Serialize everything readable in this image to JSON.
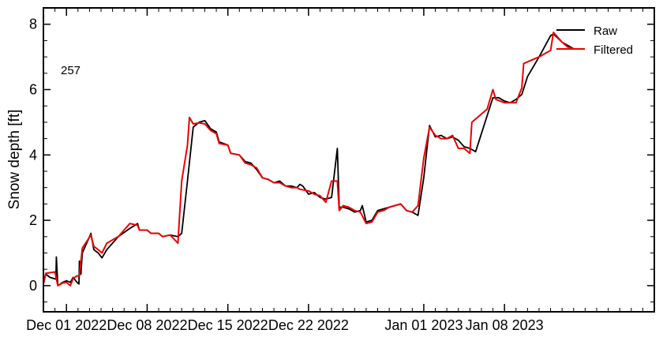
{
  "chart_data": {
    "type": "line",
    "ylabel": "Snow depth [ft]",
    "xlabel": "",
    "annotation": "257",
    "xlim": [
      "2022-11-29",
      "2023-01-21"
    ],
    "ylim": [
      -0.8,
      8.5
    ],
    "grid": false,
    "legend_position": "top-right",
    "x_ticks": [
      {
        "date": "2022-12-01",
        "label": "Dec 01 2022"
      },
      {
        "date": "2022-12-08",
        "label": "Dec 08 2022"
      },
      {
        "date": "2022-12-15",
        "label": "Dec 15 2022"
      },
      {
        "date": "2022-12-22",
        "label": "Dec 22 2022"
      },
      {
        "date": "2023-01-01",
        "label": "Jan 01 2023"
      },
      {
        "date": "2023-01-08",
        "label": "Jan 08 2023"
      }
    ],
    "y_ticks": [
      0,
      2,
      4,
      6,
      8
    ],
    "series": [
      {
        "name": "Raw",
        "color": "#000000",
        "points": [
          [
            "2022-11-29T00:00",
            0.05
          ],
          [
            "2022-11-29T05:00",
            0.35
          ],
          [
            "2022-11-29T14:00",
            0.25
          ],
          [
            "2022-11-30T02:00",
            0.2
          ],
          [
            "2022-11-30T03:00",
            0.88
          ],
          [
            "2022-11-30T06:00",
            0.0
          ],
          [
            "2022-11-30T16:00",
            0.1
          ],
          [
            "2022-12-01T00:00",
            0.15
          ],
          [
            "2022-12-01T08:00",
            0.1
          ],
          [
            "2022-12-01T14:00",
            0.25
          ],
          [
            "2022-12-01T22:00",
            0.1
          ],
          [
            "2022-12-02T02:00",
            0.05
          ],
          [
            "2022-12-02T03:00",
            0.75
          ],
          [
            "2022-12-02T06:00",
            0.35
          ],
          [
            "2022-12-02T09:00",
            1.0
          ],
          [
            "2022-12-02T18:00",
            1.3
          ],
          [
            "2022-12-03T03:00",
            1.6
          ],
          [
            "2022-12-03T09:00",
            1.1
          ],
          [
            "2022-12-03T18:00",
            1.0
          ],
          [
            "2022-12-04T02:00",
            0.85
          ],
          [
            "2022-12-04T12:00",
            1.1
          ],
          [
            "2022-12-05T12:00",
            1.5
          ],
          [
            "2022-12-06T12:00",
            1.75
          ],
          [
            "2022-12-07T04:00",
            1.9
          ],
          [
            "2022-12-07T08:00",
            1.7
          ],
          [
            "2022-12-08T00:00",
            1.7
          ],
          [
            "2022-12-08T08:00",
            1.6
          ],
          [
            "2022-12-09T00:00",
            1.6
          ],
          [
            "2022-12-09T08:00",
            1.5
          ],
          [
            "2022-12-10T00:00",
            1.55
          ],
          [
            "2022-12-10T16:00",
            1.5
          ],
          [
            "2022-12-11T00:00",
            1.6
          ],
          [
            "2022-12-11T12:00",
            3.2
          ],
          [
            "2022-12-12T00:00",
            4.85
          ],
          [
            "2022-12-12T12:00",
            5.0
          ],
          [
            "2022-12-13T00:00",
            5.05
          ],
          [
            "2022-12-13T12:00",
            4.8
          ],
          [
            "2022-12-14T00:00",
            4.7
          ],
          [
            "2022-12-14T06:00",
            4.4
          ],
          [
            "2022-12-15T00:00",
            4.3
          ],
          [
            "2022-12-15T06:00",
            4.05
          ],
          [
            "2022-12-16T00:00",
            4.0
          ],
          [
            "2022-12-16T12:00",
            3.8
          ],
          [
            "2022-12-17T00:00",
            3.75
          ],
          [
            "2022-12-17T12:00",
            3.55
          ],
          [
            "2022-12-18T00:00",
            3.3
          ],
          [
            "2022-12-18T12:00",
            3.25
          ],
          [
            "2022-12-19T00:00",
            3.15
          ],
          [
            "2022-12-19T12:00",
            3.2
          ],
          [
            "2022-12-20T00:00",
            3.05
          ],
          [
            "2022-12-20T12:00",
            3.05
          ],
          [
            "2022-12-21T00:00",
            3.0
          ],
          [
            "2022-12-21T06:00",
            3.1
          ],
          [
            "2022-12-21T12:00",
            3.05
          ],
          [
            "2022-12-22T00:00",
            2.8
          ],
          [
            "2022-12-22T12:00",
            2.85
          ],
          [
            "2022-12-23T00:00",
            2.7
          ],
          [
            "2022-12-23T12:00",
            2.65
          ],
          [
            "2022-12-24T00:00",
            2.7
          ],
          [
            "2022-12-24T12:00",
            4.2
          ],
          [
            "2022-12-24T16:00",
            2.4
          ],
          [
            "2022-12-25T00:00",
            2.4
          ],
          [
            "2022-12-25T12:00",
            2.35
          ],
          [
            "2022-12-26T00:00",
            2.25
          ],
          [
            "2022-12-26T12:00",
            2.3
          ],
          [
            "2022-12-26T16:00",
            2.45
          ],
          [
            "2022-12-27T00:00",
            1.95
          ],
          [
            "2022-12-27T12:00",
            2.0
          ],
          [
            "2022-12-28T00:00",
            2.3
          ],
          [
            "2022-12-28T12:00",
            2.35
          ],
          [
            "2022-12-29T00:00",
            2.4
          ],
          [
            "2022-12-30T00:00",
            2.5
          ],
          [
            "2022-12-30T12:00",
            2.3
          ],
          [
            "2022-12-31T00:00",
            2.25
          ],
          [
            "2022-12-31T12:00",
            2.15
          ],
          [
            "2023-01-01T00:00",
            3.3
          ],
          [
            "2023-01-01T12:00",
            4.9
          ],
          [
            "2023-01-02T00:00",
            4.55
          ],
          [
            "2023-01-02T12:00",
            4.6
          ],
          [
            "2023-01-03T00:00",
            4.5
          ],
          [
            "2023-01-03T12:00",
            4.55
          ],
          [
            "2023-01-04T00:00",
            4.45
          ],
          [
            "2023-01-04T12:00",
            4.25
          ],
          [
            "2023-01-05T00:00",
            4.2
          ],
          [
            "2023-01-05T12:00",
            4.1
          ],
          [
            "2023-01-07T00:00",
            5.75
          ],
          [
            "2023-01-07T12:00",
            5.75
          ],
          [
            "2023-01-08T00:00",
            5.65
          ],
          [
            "2023-01-08T12:00",
            5.6
          ],
          [
            "2023-01-09T00:00",
            5.7
          ],
          [
            "2023-01-09T12:00",
            5.85
          ],
          [
            "2023-01-10T00:00",
            6.4
          ],
          [
            "2023-01-11T00:00",
            7.0
          ],
          [
            "2023-01-12T00:00",
            7.65
          ],
          [
            "2023-01-12T06:00",
            7.7
          ],
          [
            "2023-01-13T00:00",
            7.45
          ],
          [
            "2023-01-13T12:00",
            7.35
          ],
          [
            "2023-01-14T00:00",
            7.25
          ]
        ]
      },
      {
        "name": "Filtered",
        "color": "#ee0000",
        "points": [
          [
            "2022-11-29T00:00",
            0.05
          ],
          [
            "2022-11-29T05:00",
            0.38
          ],
          [
            "2022-11-30T00:00",
            0.42
          ],
          [
            "2022-11-30T06:00",
            0.0
          ],
          [
            "2022-11-30T16:00",
            0.08
          ],
          [
            "2022-12-01T00:00",
            0.1
          ],
          [
            "2022-12-01T08:00",
            0.0
          ],
          [
            "2022-12-01T14:00",
            0.22
          ],
          [
            "2022-12-01T22:00",
            0.3
          ],
          [
            "2022-12-02T03:00",
            0.3
          ],
          [
            "2022-12-02T09:00",
            1.15
          ],
          [
            "2022-12-02T18:00",
            1.35
          ],
          [
            "2022-12-03T03:00",
            1.55
          ],
          [
            "2022-12-03T09:00",
            1.2
          ],
          [
            "2022-12-03T18:00",
            1.1
          ],
          [
            "2022-12-04T02:00",
            1.0
          ],
          [
            "2022-12-04T12:00",
            1.3
          ],
          [
            "2022-12-05T12:00",
            1.5
          ],
          [
            "2022-12-06T12:00",
            1.9
          ],
          [
            "2022-12-07T04:00",
            1.85
          ],
          [
            "2022-12-07T08:00",
            1.7
          ],
          [
            "2022-12-08T00:00",
            1.7
          ],
          [
            "2022-12-08T08:00",
            1.6
          ],
          [
            "2022-12-09T00:00",
            1.6
          ],
          [
            "2022-12-09T08:00",
            1.5
          ],
          [
            "2022-12-10T00:00",
            1.55
          ],
          [
            "2022-12-10T16:00",
            1.3
          ],
          [
            "2022-12-11T00:00",
            3.2
          ],
          [
            "2022-12-11T12:00",
            4.3
          ],
          [
            "2022-12-11T16:00",
            5.15
          ],
          [
            "2022-12-12T00:00",
            4.95
          ],
          [
            "2022-12-12T12:00",
            4.98
          ],
          [
            "2022-12-13T00:00",
            4.95
          ],
          [
            "2022-12-13T12:00",
            4.75
          ],
          [
            "2022-12-14T00:00",
            4.65
          ],
          [
            "2022-12-14T06:00",
            4.35
          ],
          [
            "2022-12-15T00:00",
            4.3
          ],
          [
            "2022-12-15T06:00",
            4.05
          ],
          [
            "2022-12-16T00:00",
            4.0
          ],
          [
            "2022-12-16T12:00",
            3.75
          ],
          [
            "2022-12-17T00:00",
            3.7
          ],
          [
            "2022-12-17T12:00",
            3.6
          ],
          [
            "2022-12-18T00:00",
            3.3
          ],
          [
            "2022-12-18T12:00",
            3.25
          ],
          [
            "2022-12-19T00:00",
            3.15
          ],
          [
            "2022-12-19T12:00",
            3.15
          ],
          [
            "2022-12-20T00:00",
            3.05
          ],
          [
            "2022-12-20T12:00",
            3.0
          ],
          [
            "2022-12-21T00:00",
            3.0
          ],
          [
            "2022-12-21T06:00",
            2.95
          ],
          [
            "2022-12-22T00:00",
            2.9
          ],
          [
            "2022-12-22T12:00",
            2.8
          ],
          [
            "2022-12-23T00:00",
            2.75
          ],
          [
            "2022-12-23T12:00",
            2.55
          ],
          [
            "2022-12-24T00:00",
            3.2
          ],
          [
            "2022-12-24T12:00",
            3.2
          ],
          [
            "2022-12-24T16:00",
            2.3
          ],
          [
            "2022-12-25T00:00",
            2.45
          ],
          [
            "2022-12-25T12:00",
            2.4
          ],
          [
            "2022-12-26T00:00",
            2.3
          ],
          [
            "2022-12-26T12:00",
            2.25
          ],
          [
            "2022-12-27T00:00",
            1.9
          ],
          [
            "2022-12-27T12:00",
            1.95
          ],
          [
            "2022-12-28T00:00",
            2.25
          ],
          [
            "2022-12-28T12:00",
            2.3
          ],
          [
            "2022-12-29T00:00",
            2.4
          ],
          [
            "2022-12-30T00:00",
            2.5
          ],
          [
            "2022-12-30T12:00",
            2.3
          ],
          [
            "2022-12-31T00:00",
            2.25
          ],
          [
            "2022-12-31T12:00",
            2.45
          ],
          [
            "2023-01-01T00:00",
            3.9
          ],
          [
            "2023-01-01T12:00",
            4.85
          ],
          [
            "2023-01-02T00:00",
            4.6
          ],
          [
            "2023-01-02T12:00",
            4.5
          ],
          [
            "2023-01-03T00:00",
            4.5
          ],
          [
            "2023-01-03T12:00",
            4.6
          ],
          [
            "2023-01-04T00:00",
            4.2
          ],
          [
            "2023-01-04T12:00",
            4.2
          ],
          [
            "2023-01-05T00:00",
            4.05
          ],
          [
            "2023-01-05T04:00",
            5.0
          ],
          [
            "2023-01-06T12:00",
            5.4
          ],
          [
            "2023-01-07T00:00",
            6.0
          ],
          [
            "2023-01-07T06:00",
            5.7
          ],
          [
            "2023-01-08T00:00",
            5.6
          ],
          [
            "2023-01-08T12:00",
            5.6
          ],
          [
            "2023-01-09T00:00",
            5.6
          ],
          [
            "2023-01-09T12:00",
            6.05
          ],
          [
            "2023-01-09T16:00",
            6.8
          ],
          [
            "2023-01-11T00:00",
            7.0
          ],
          [
            "2023-01-12T00:00",
            7.2
          ],
          [
            "2023-01-12T06:00",
            7.75
          ],
          [
            "2023-01-13T00:00",
            7.45
          ],
          [
            "2023-01-13T12:00",
            7.3
          ],
          [
            "2023-01-14T00:00",
            7.25
          ]
        ]
      }
    ]
  }
}
